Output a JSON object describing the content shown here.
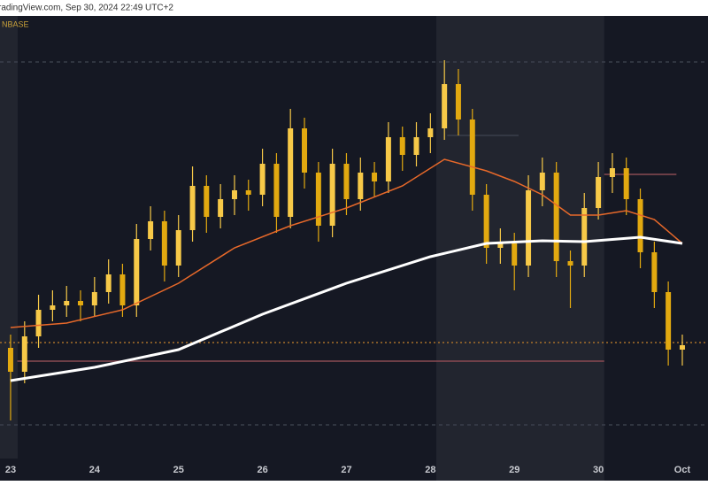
{
  "chart_data": {
    "type": "candlestick",
    "source": "radingView.com, Sep 30, 2024 22:49 UTC+2",
    "symbol": "NBASE",
    "x": [
      23,
      23.167,
      23.333,
      23.5,
      23.667,
      23.833,
      24,
      24.167,
      24.333,
      24.5,
      24.667,
      24.833,
      25,
      25.167,
      25.333,
      25.5,
      25.667,
      25.833,
      26,
      26.167,
      26.333,
      26.5,
      26.667,
      26.833,
      27,
      27.167,
      27.333,
      27.5,
      27.667,
      27.833,
      28,
      28.167,
      28.333,
      28.5,
      28.667,
      28.833,
      29,
      29.167,
      29.333,
      29.5,
      29.667,
      29.833,
      30,
      30.167,
      30.333,
      30.5,
      30.667,
      30.833,
      31
    ],
    "open": [
      25,
      19.6,
      27.6,
      33.6,
      34.6,
      35.6,
      34.6,
      37.6,
      41.6,
      34.6,
      49.6,
      53.6,
      43.6,
      51.6,
      61.6,
      54.6,
      58.6,
      60.6,
      59.6,
      66.6,
      54.6,
      74.6,
      64.6,
      52.6,
      66.6,
      58.6,
      64.6,
      62.6,
      72.6,
      68.6,
      72.6,
      74.6,
      84.6,
      76.6,
      59.6,
      47.6,
      48.6,
      43.6,
      60.6,
      64.6,
      44.6,
      43.6,
      56.6,
      63.6,
      65.6,
      58.6,
      46.6,
      37.6,
      24.6
    ],
    "high": [
      28,
      31,
      37,
      38,
      39,
      38,
      41,
      45,
      44,
      53,
      57,
      56,
      55,
      66,
      64,
      62,
      64,
      63,
      70,
      69,
      79,
      77,
      67,
      70,
      69,
      68,
      67,
      76,
      75,
      76,
      78,
      90,
      88,
      79,
      62,
      52,
      51,
      64,
      68,
      67,
      47,
      60,
      67,
      69,
      68,
      61,
      49,
      40,
      28
    ],
    "low": [
      8.6,
      17,
      25,
      31,
      32,
      31,
      32,
      35,
      32,
      32,
      47,
      40,
      41,
      49,
      51,
      52,
      55,
      56,
      57,
      51,
      52,
      61,
      49,
      50,
      55,
      56,
      59,
      60,
      65,
      66,
      69,
      72,
      73,
      56,
      44,
      44,
      38,
      41,
      57,
      41,
      34,
      41,
      54,
      60,
      55,
      43,
      34,
      21,
      21
    ],
    "close": [
      19.6,
      27.6,
      33.6,
      34.6,
      35.6,
      34.6,
      37.6,
      41.6,
      34.6,
      49.6,
      53.6,
      43.6,
      51.6,
      61.6,
      54.6,
      58.6,
      60.6,
      59.6,
      66.6,
      54.6,
      74.6,
      64.6,
      52.6,
      66.6,
      58.6,
      64.6,
      62.6,
      72.6,
      68.6,
      72.6,
      74.6,
      84.6,
      76.6,
      59.6,
      47.6,
      48.6,
      43.6,
      60.6,
      64.6,
      44.6,
      43.6,
      56.6,
      63.6,
      65.6,
      58.6,
      46.6,
      37.6,
      24.6,
      25.6
    ],
    "up_color": "#f7c948",
    "down_color": "#e2a910",
    "lines": [
      {
        "color": "#e8692a",
        "x": [
          23,
          23.667,
          24.333,
          25,
          25.667,
          26.333,
          27,
          27.667,
          28.167,
          28.667,
          29,
          29.333,
          29.667,
          30,
          30.333,
          30.667,
          31
        ],
        "values": [
          29.6,
          30.6,
          33.6,
          39.6,
          47.6,
          52.6,
          56.6,
          61.6,
          67.6,
          65,
          62.6,
          59.6,
          55,
          55,
          56,
          54,
          48.6
        ]
      },
      {
        "color": "#ffffff",
        "x": [
          23,
          24,
          25,
          26,
          27,
          28,
          28.667,
          29.333,
          29.833,
          30.5,
          31
        ],
        "values": [
          17.6,
          20.6,
          24.6,
          32.6,
          39.6,
          45.6,
          48.6,
          49.2,
          49,
          50,
          48.6
        ]
      }
    ],
    "levels": [
      {
        "value": 89.6,
        "x": [
          22.874,
          31.306
        ],
        "color": "#3a3f4b",
        "dash": "4 4"
      },
      {
        "value": 26.2,
        "x": [
          22.874,
          31.306
        ],
        "color": "#a8702a",
        "dash": "2 3"
      },
      {
        "value": 7.6,
        "x": [
          22.874,
          31.306
        ],
        "color": "#3a3f4b",
        "dash": "4 4"
      },
      {
        "value": 22,
        "x": [
          23.08,
          30.07
        ],
        "color": "#8a4a52",
        "dash": "none"
      },
      {
        "value": 64.2,
        "x": [
          30.07,
          30.93
        ],
        "color": "#8a4a52",
        "dash": "none"
      },
      {
        "value": 73,
        "x": [
          28.2,
          29.05
        ],
        "color": "#3a3f4b",
        "dash": "none"
      }
    ],
    "highlight_ranges": [
      [
        28.07,
        30.07
      ]
    ],
    "xlim": [
      22.874,
      31.306
    ],
    "ylim": [
      0,
      100
    ],
    "xticks": [
      {
        "value": 23,
        "label": "23"
      },
      {
        "value": 24,
        "label": "24"
      },
      {
        "value": 25,
        "label": "25"
      },
      {
        "value": 26,
        "label": "26"
      },
      {
        "value": 27,
        "label": "27"
      },
      {
        "value": 28,
        "label": "28"
      },
      {
        "value": 29,
        "label": "29"
      },
      {
        "value": 30,
        "label": "30"
      },
      {
        "value": 31,
        "label": "Oct"
      }
    ]
  }
}
